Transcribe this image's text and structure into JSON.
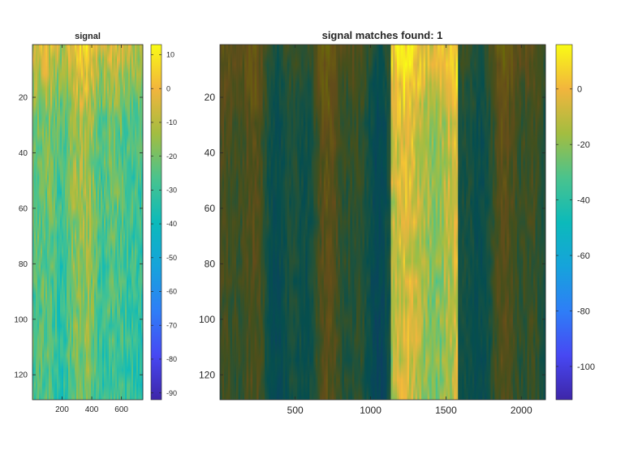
{
  "chart_data": [
    {
      "type": "heatmap",
      "title": "signal",
      "xlabel": "",
      "ylabel": "",
      "xlim": [
        1,
        744
      ],
      "ylim": [
        1,
        129
      ],
      "y_reversed": true,
      "x_ticks": [
        200,
        400,
        600
      ],
      "y_ticks": [
        20,
        40,
        60,
        80,
        100,
        120
      ],
      "colormap": "parula",
      "colorbar": {
        "range": [
          -92,
          13
        ],
        "ticks": [
          10,
          0,
          -10,
          -20,
          -30,
          -40,
          -50,
          -60,
          -70,
          -80,
          -90
        ]
      },
      "band_profile": [
        {
          "x": 1,
          "level": -20
        },
        {
          "x": 110,
          "level": -16
        },
        {
          "x": 200,
          "level": -26
        },
        {
          "x": 280,
          "level": -12
        },
        {
          "x": 380,
          "level": -8
        },
        {
          "x": 460,
          "level": -24
        },
        {
          "x": 540,
          "level": -18
        },
        {
          "x": 620,
          "level": -22
        },
        {
          "x": 744,
          "level": -26
        }
      ]
    },
    {
      "type": "heatmap",
      "title": "signal matches found: 1",
      "xlabel": "",
      "ylabel": "",
      "xlim": [
        1,
        2160
      ],
      "ylim": [
        1,
        129
      ],
      "y_reversed": true,
      "x_ticks": [
        500,
        1000,
        1500,
        2000
      ],
      "y_ticks": [
        20,
        40,
        60,
        80,
        100,
        120
      ],
      "colormap": "parula",
      "colorbar": {
        "range": [
          -112,
          16
        ],
        "ticks": [
          0,
          -20,
          -40,
          -60,
          -80,
          -100
        ]
      },
      "highlight_region": {
        "x_start": 1140,
        "x_end": 1580
      },
      "background_dimmed": true
    }
  ]
}
